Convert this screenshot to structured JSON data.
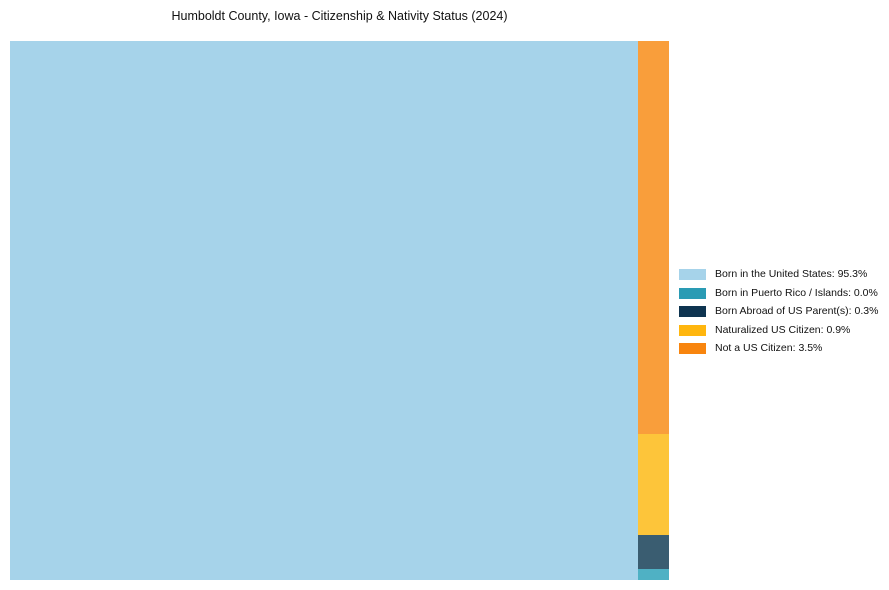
{
  "title": "Humboldt County, Iowa - Citizenship & Nativity Status (2024)",
  "chart_data": {
    "type": "treemap",
    "title": "Humboldt County, Iowa - Citizenship & Nativity Status (2024)",
    "unit": "%",
    "total": 100,
    "legend_position": "right",
    "items": [
      {
        "label": "Born in the United States",
        "value": 95.3,
        "fill": "#a6d3ea",
        "legend_color": "#a6d3ea"
      },
      {
        "label": "Born in Puerto Rico / Islands",
        "value": 0.0,
        "fill": "#4fb1c4",
        "legend_color": "#2a9bb4"
      },
      {
        "label": "Born Abroad of US Parent(s)",
        "value": 0.3,
        "fill": "#3a5d71",
        "legend_color": "#0e3450"
      },
      {
        "label": "Naturalized US Citizen",
        "value": 0.9,
        "fill": "#fdc53a",
        "legend_color": "#ffb60e"
      },
      {
        "label": "Not a US Citizen",
        "value": 3.5,
        "fill": "#f99e3b",
        "legend_color": "#f8850e"
      }
    ]
  },
  "legend": {
    "items": [
      {
        "label": "Born in the United States: 95.3%"
      },
      {
        "label": "Born in Puerto Rico / Islands: 0.0%"
      },
      {
        "label": "Born Abroad of US Parent(s): 0.3%"
      },
      {
        "label": "Naturalized US Citizen: 0.9%"
      },
      {
        "label": "Not a US Citizen: 3.5%"
      }
    ]
  }
}
